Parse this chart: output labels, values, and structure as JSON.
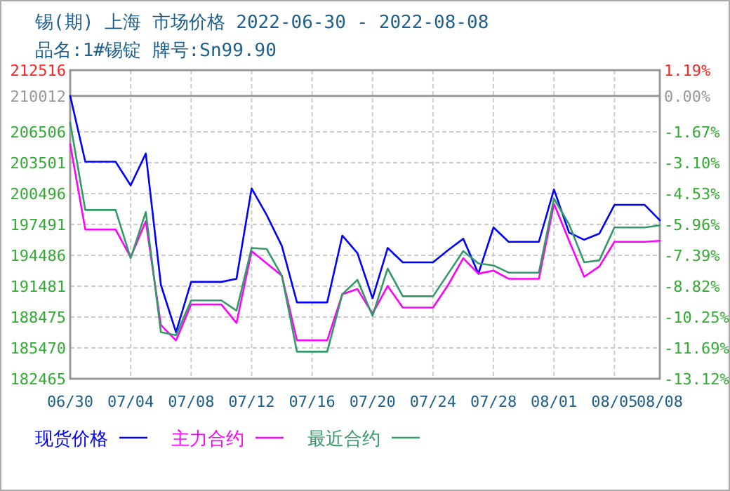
{
  "chart_data": {
    "type": "line",
    "title": "锡(期) 上海 市场价格 2022-06-30 - 2022-08-08",
    "subtitle": "品名:1#锡锭 牌号:Sn99.90",
    "x": [
      "2022-06-30",
      "2022-07-01",
      "2022-07-02",
      "2022-07-03",
      "2022-07-04",
      "2022-07-05",
      "2022-07-06",
      "2022-07-07",
      "2022-07-08",
      "2022-07-09",
      "2022-07-10",
      "2022-07-11",
      "2022-07-12",
      "2022-07-13",
      "2022-07-14",
      "2022-07-15",
      "2022-07-16",
      "2022-07-17",
      "2022-07-18",
      "2022-07-19",
      "2022-07-20",
      "2022-07-21",
      "2022-07-22",
      "2022-07-23",
      "2022-07-24",
      "2022-07-25",
      "2022-07-26",
      "2022-07-27",
      "2022-07-28",
      "2022-07-29",
      "2022-07-30",
      "2022-07-31",
      "2022-08-01",
      "2022-08-02",
      "2022-08-03",
      "2022-08-04",
      "2022-08-05",
      "2022-08-06",
      "2022-08-07",
      "2022-08-08"
    ],
    "series": [
      {
        "name": "现货价格",
        "color": "#0000ff",
        "values": [
          210012,
          203600,
          203600,
          203600,
          201300,
          204400,
          191600,
          187000,
          191900,
          191900,
          191900,
          192200,
          201000,
          198400,
          195400,
          189900,
          189900,
          189900,
          196400,
          194700,
          190300,
          195200,
          193800,
          193800,
          193800,
          195000,
          196100,
          192700,
          197200,
          195800,
          195800,
          195800,
          200900,
          196700,
          196000,
          196600,
          199400,
          199400,
          199400,
          197900
        ]
      },
      {
        "name": "主力合约",
        "color": "#ff00ff",
        "values": [
          205300,
          197000,
          197000,
          197000,
          194300,
          197800,
          187700,
          186200,
          189700,
          189700,
          189700,
          187900,
          194900,
          193700,
          192500,
          186200,
          186200,
          186200,
          190700,
          191200,
          188800,
          191500,
          189400,
          189400,
          189400,
          191600,
          194200,
          192700,
          193000,
          192200,
          192200,
          192200,
          199500,
          195900,
          192400,
          193400,
          195800,
          195800,
          195800,
          195900
        ]
      },
      {
        "name": "最近合约",
        "color": "#339966",
        "values": [
          207400,
          198900,
          198900,
          198900,
          194200,
          198700,
          187000,
          186700,
          190100,
          190100,
          190100,
          189100,
          195200,
          195100,
          192500,
          185100,
          185100,
          185100,
          190700,
          192100,
          188600,
          193200,
          190500,
          190500,
          190500,
          192700,
          194900,
          193700,
          193500,
          192800,
          192800,
          192800,
          200000,
          197500,
          193800,
          194000,
          197200,
          197200,
          197200,
          197400
        ]
      }
    ],
    "xlim": [
      "2022-06-30",
      "2022-08-08"
    ],
    "xticks": [
      {
        "value": "2022-06-30",
        "label": "06/30"
      },
      {
        "value": "2022-07-04",
        "label": "07/04"
      },
      {
        "value": "2022-07-08",
        "label": "07/08"
      },
      {
        "value": "2022-07-12",
        "label": "07/12"
      },
      {
        "value": "2022-07-16",
        "label": "07/16"
      },
      {
        "value": "2022-07-20",
        "label": "07/20"
      },
      {
        "value": "2022-07-24",
        "label": "07/24"
      },
      {
        "value": "2022-07-28",
        "label": "07/28"
      },
      {
        "value": "2022-08-01",
        "label": "08/01"
      },
      {
        "value": "2022-08-05",
        "label": "08/05"
      },
      {
        "value": "2022-08-08",
        "label": "08/08"
      }
    ],
    "ylim": [
      182465,
      212516
    ],
    "yticks": [
      212516,
      210012,
      206506,
      203501,
      200496,
      197491,
      194486,
      191481,
      188475,
      185470,
      182465
    ],
    "y2lim": [
      -13.12,
      1.19
    ],
    "y2ticks": [
      {
        "value": 1.19,
        "label": "1.19%"
      },
      {
        "value": 0,
        "label": "0.00%"
      },
      {
        "value": -1.67,
        "label": "-1.67%"
      },
      {
        "value": -3.1,
        "label": "-3.10%"
      },
      {
        "value": -4.53,
        "label": "-4.53%"
      },
      {
        "value": -5.96,
        "label": "-5.96%"
      },
      {
        "value": -7.39,
        "label": "-7.39%"
      },
      {
        "value": -8.82,
        "label": "-8.82%"
      },
      {
        "value": -10.25,
        "label": "-10.25%"
      },
      {
        "value": -11.69,
        "label": "-11.69%"
      },
      {
        "value": -13.12,
        "label": "-13.12%"
      }
    ],
    "ref_lines": [
      {
        "axis": "y",
        "value": 210012,
        "color": "#999999"
      }
    ],
    "grid": true,
    "legend": "bottom",
    "line_style": "solid"
  }
}
